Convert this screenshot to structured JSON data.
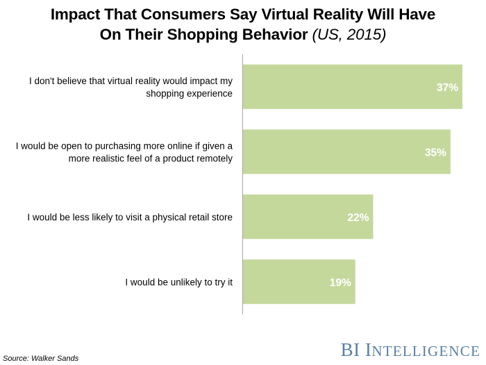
{
  "header": {
    "title_line1": "Impact That Consumers Say Virtual Reality Will Have",
    "title_line2": "On Their Shopping Behavior",
    "title_suffix": "(US, 2015)"
  },
  "footer": {
    "source": "Source: Walker Sands",
    "brand_bi": "BI",
    "brand_rest_I": "I",
    "brand_rest": "NTELLIGENCE"
  },
  "colors": {
    "bar": "#c5d89c",
    "axis": "#a6a6a6",
    "bar_label": "#ffffff"
  },
  "chart_data": {
    "type": "bar",
    "orientation": "horizontal",
    "categories": [
      [
        "I don't believe that virtual reality would impact my",
        "shopping experience"
      ],
      [
        "I would be open to purchasing more online if given a",
        "more realistic feel of a product remotely"
      ],
      [
        "I would be less likely to visit a physical retail store"
      ],
      [
        "I would be unlikely to try it"
      ]
    ],
    "values": [
      37,
      35,
      22,
      19
    ],
    "value_labels": [
      "37%",
      "35%",
      "22%",
      "19%"
    ],
    "xlim": [
      0,
      37
    ],
    "grid": false
  }
}
